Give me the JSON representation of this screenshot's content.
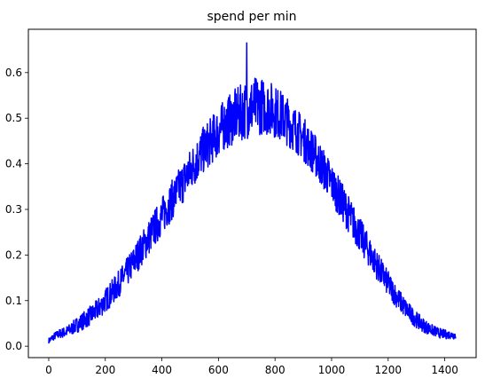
{
  "chart_data": {
    "type": "line",
    "title": "spend per min",
    "xlabel": "",
    "ylabel": "",
    "xlim": [
      -72,
      1511
    ],
    "ylim": [
      -0.025,
      0.695
    ],
    "x_ticks": [
      0,
      200,
      400,
      600,
      800,
      1000,
      1200,
      1400
    ],
    "y_ticks": [
      0.0,
      0.1,
      0.2,
      0.3,
      0.4,
      0.5,
      0.6
    ],
    "x_tick_labels": [
      "0",
      "200",
      "400",
      "600",
      "800",
      "1000",
      "1200",
      "1400"
    ],
    "y_tick_labels": [
      "0.0",
      "0.1",
      "0.2",
      "0.3",
      "0.4",
      "0.5",
      "0.6"
    ],
    "grid": false,
    "legend": "none",
    "series": [
      {
        "color": "#0000ff",
        "x": [
          0,
          20,
          40,
          60,
          80,
          100,
          120,
          140,
          160,
          180,
          200,
          220,
          240,
          260,
          280,
          300,
          320,
          340,
          360,
          380,
          400,
          420,
          440,
          460,
          480,
          500,
          520,
          540,
          560,
          580,
          600,
          620,
          640,
          660,
          680,
          700,
          720,
          740,
          760,
          780,
          800,
          820,
          840,
          860,
          880,
          900,
          920,
          940,
          960,
          980,
          1000,
          1020,
          1040,
          1060,
          1080,
          1100,
          1120,
          1140,
          1160,
          1180,
          1200,
          1220,
          1240,
          1260,
          1280,
          1300,
          1320,
          1340,
          1360,
          1380,
          1400,
          1420,
          1439
        ],
        "values": [
          0.012,
          0.022,
          0.028,
          0.031,
          0.038,
          0.047,
          0.055,
          0.064,
          0.073,
          0.085,
          0.1,
          0.115,
          0.13,
          0.148,
          0.165,
          0.185,
          0.205,
          0.225,
          0.245,
          0.265,
          0.285,
          0.305,
          0.325,
          0.345,
          0.365,
          0.385,
          0.405,
          0.425,
          0.44,
          0.455,
          0.47,
          0.485,
          0.495,
          0.505,
          0.512,
          0.52,
          0.525,
          0.527,
          0.526,
          0.523,
          0.515,
          0.506,
          0.495,
          0.483,
          0.47,
          0.455,
          0.438,
          0.42,
          0.4,
          0.38,
          0.358,
          0.335,
          0.313,
          0.29,
          0.267,
          0.245,
          0.222,
          0.2,
          0.178,
          0.157,
          0.137,
          0.118,
          0.1,
          0.084,
          0.07,
          0.058,
          0.048,
          0.04,
          0.034,
          0.029,
          0.026,
          0.025,
          0.024
        ],
        "noise_envelope": [
          0.006,
          0.008,
          0.01,
          0.012,
          0.014,
          0.017,
          0.019,
          0.021,
          0.022,
          0.024,
          0.026,
          0.028,
          0.029,
          0.03,
          0.032,
          0.034,
          0.036,
          0.038,
          0.04,
          0.041,
          0.042,
          0.043,
          0.044,
          0.045,
          0.047,
          0.048,
          0.05,
          0.051,
          0.052,
          0.053,
          0.055,
          0.056,
          0.058,
          0.06,
          0.062,
          0.065,
          0.066,
          0.064,
          0.062,
          0.06,
          0.058,
          0.056,
          0.054,
          0.052,
          0.05,
          0.049,
          0.048,
          0.047,
          0.046,
          0.045,
          0.044,
          0.043,
          0.042,
          0.041,
          0.04,
          0.038,
          0.036,
          0.034,
          0.032,
          0.03,
          0.028,
          0.026,
          0.024,
          0.022,
          0.02,
          0.018,
          0.016,
          0.014,
          0.012,
          0.011,
          0.01,
          0.009,
          0.009
        ],
        "peak": {
          "x": 700,
          "value": 0.665
        }
      }
    ]
  }
}
